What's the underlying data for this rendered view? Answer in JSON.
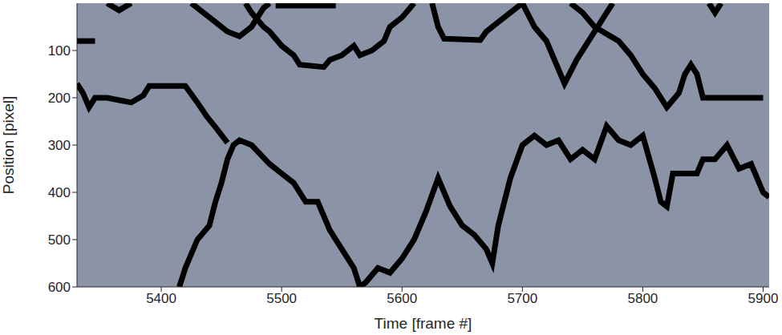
{
  "chart_data": {
    "type": "line",
    "x_label": "Time [frame #]",
    "y_label": "Position [pixel]",
    "xlim": [
      5330,
      5905
    ],
    "ylim": [
      600,
      0
    ],
    "xticks": [
      5400,
      5500,
      5600,
      5700,
      5800,
      5900
    ],
    "yticks": [
      100,
      200,
      300,
      400,
      500,
      600
    ],
    "series": [
      {
        "color": "#000000",
        "x": [
          5330,
          5345
        ],
        "values": [
          80,
          80
        ]
      },
      {
        "color": "#000000",
        "x": [
          5330,
          5335,
          5340,
          5345,
          5355,
          5365,
          5375,
          5385,
          5390,
          5400,
          5410,
          5420,
          5430,
          5438,
          5445,
          5455
        ],
        "values": [
          170,
          190,
          220,
          200,
          200,
          205,
          210,
          195,
          175,
          175,
          175,
          175,
          210,
          240,
          262,
          295
        ]
      },
      {
        "color": "#000000",
        "x": [
          5415,
          5420,
          5430,
          5440,
          5445,
          5450,
          5455,
          5460,
          5465,
          5475,
          5490,
          5500,
          5510,
          5520,
          5530,
          5540,
          5550,
          5560,
          5565,
          5570,
          5580,
          5590,
          5600,
          5610,
          5620,
          5630,
          5640,
          5650,
          5660,
          5670,
          5675,
          5680,
          5690,
          5700,
          5710,
          5720,
          5730,
          5740,
          5750,
          5760,
          5770,
          5780,
          5790,
          5800,
          5810,
          5815,
          5820,
          5825,
          5845,
          5850,
          5860,
          5870,
          5880,
          5890,
          5900,
          5905
        ],
        "values": [
          600,
          560,
          500,
          470,
          420,
          380,
          330,
          300,
          290,
          300,
          340,
          360,
          380,
          420,
          420,
          480,
          520,
          560,
          600,
          590,
          560,
          570,
          540,
          500,
          440,
          370,
          430,
          470,
          490,
          520,
          550,
          470,
          370,
          300,
          280,
          300,
          290,
          330,
          310,
          330,
          260,
          290,
          300,
          280,
          370,
          420,
          430,
          360,
          360,
          330,
          330,
          300,
          350,
          340,
          400,
          410
        ]
      },
      {
        "color": "#000000",
        "x": [
          5355,
          5365,
          5375
        ],
        "values": [
          0,
          15,
          0
        ]
      },
      {
        "color": "#000000",
        "x": [
          5425,
          5435,
          5445,
          5455,
          5465,
          5475,
          5480,
          5485,
          5490
        ],
        "values": [
          0,
          20,
          40,
          60,
          70,
          50,
          30,
          10,
          0
        ]
      },
      {
        "color": "#000000",
        "x": [
          5470,
          5475,
          5485,
          5490,
          5500,
          5510,
          5515,
          5535,
          5540,
          5550,
          5560,
          5565,
          5575,
          5585,
          5590,
          5600,
          5610
        ],
        "values": [
          0,
          20,
          50,
          60,
          90,
          110,
          130,
          135,
          120,
          110,
          90,
          110,
          100,
          80,
          50,
          30,
          0
        ]
      },
      {
        "color": "#000000",
        "x": [
          5495,
          5545
        ],
        "values": [
          5,
          5
        ]
      },
      {
        "color": "#000000",
        "x": [
          5625,
          5630,
          5635,
          5665,
          5670,
          5680,
          5690,
          5700
        ],
        "values": [
          0,
          50,
          75,
          78,
          60,
          40,
          20,
          0
        ]
      },
      {
        "color": "#000000",
        "x": [
          5700,
          5710,
          5720,
          5735,
          5745,
          5755,
          5765,
          5775
        ],
        "values": [
          0,
          50,
          80,
          170,
          120,
          80,
          40,
          0
        ]
      },
      {
        "color": "#000000",
        "x": [
          5740,
          5750,
          5760,
          5780,
          5790,
          5800,
          5810,
          5820,
          5830,
          5835,
          5840,
          5845,
          5850,
          5860,
          5900
        ],
        "values": [
          0,
          20,
          50,
          80,
          110,
          150,
          180,
          220,
          190,
          150,
          130,
          150,
          200,
          200,
          200
        ]
      },
      {
        "color": "#000000",
        "x": [
          5855,
          5860,
          5865
        ],
        "values": [
          0,
          20,
          0
        ]
      }
    ]
  }
}
